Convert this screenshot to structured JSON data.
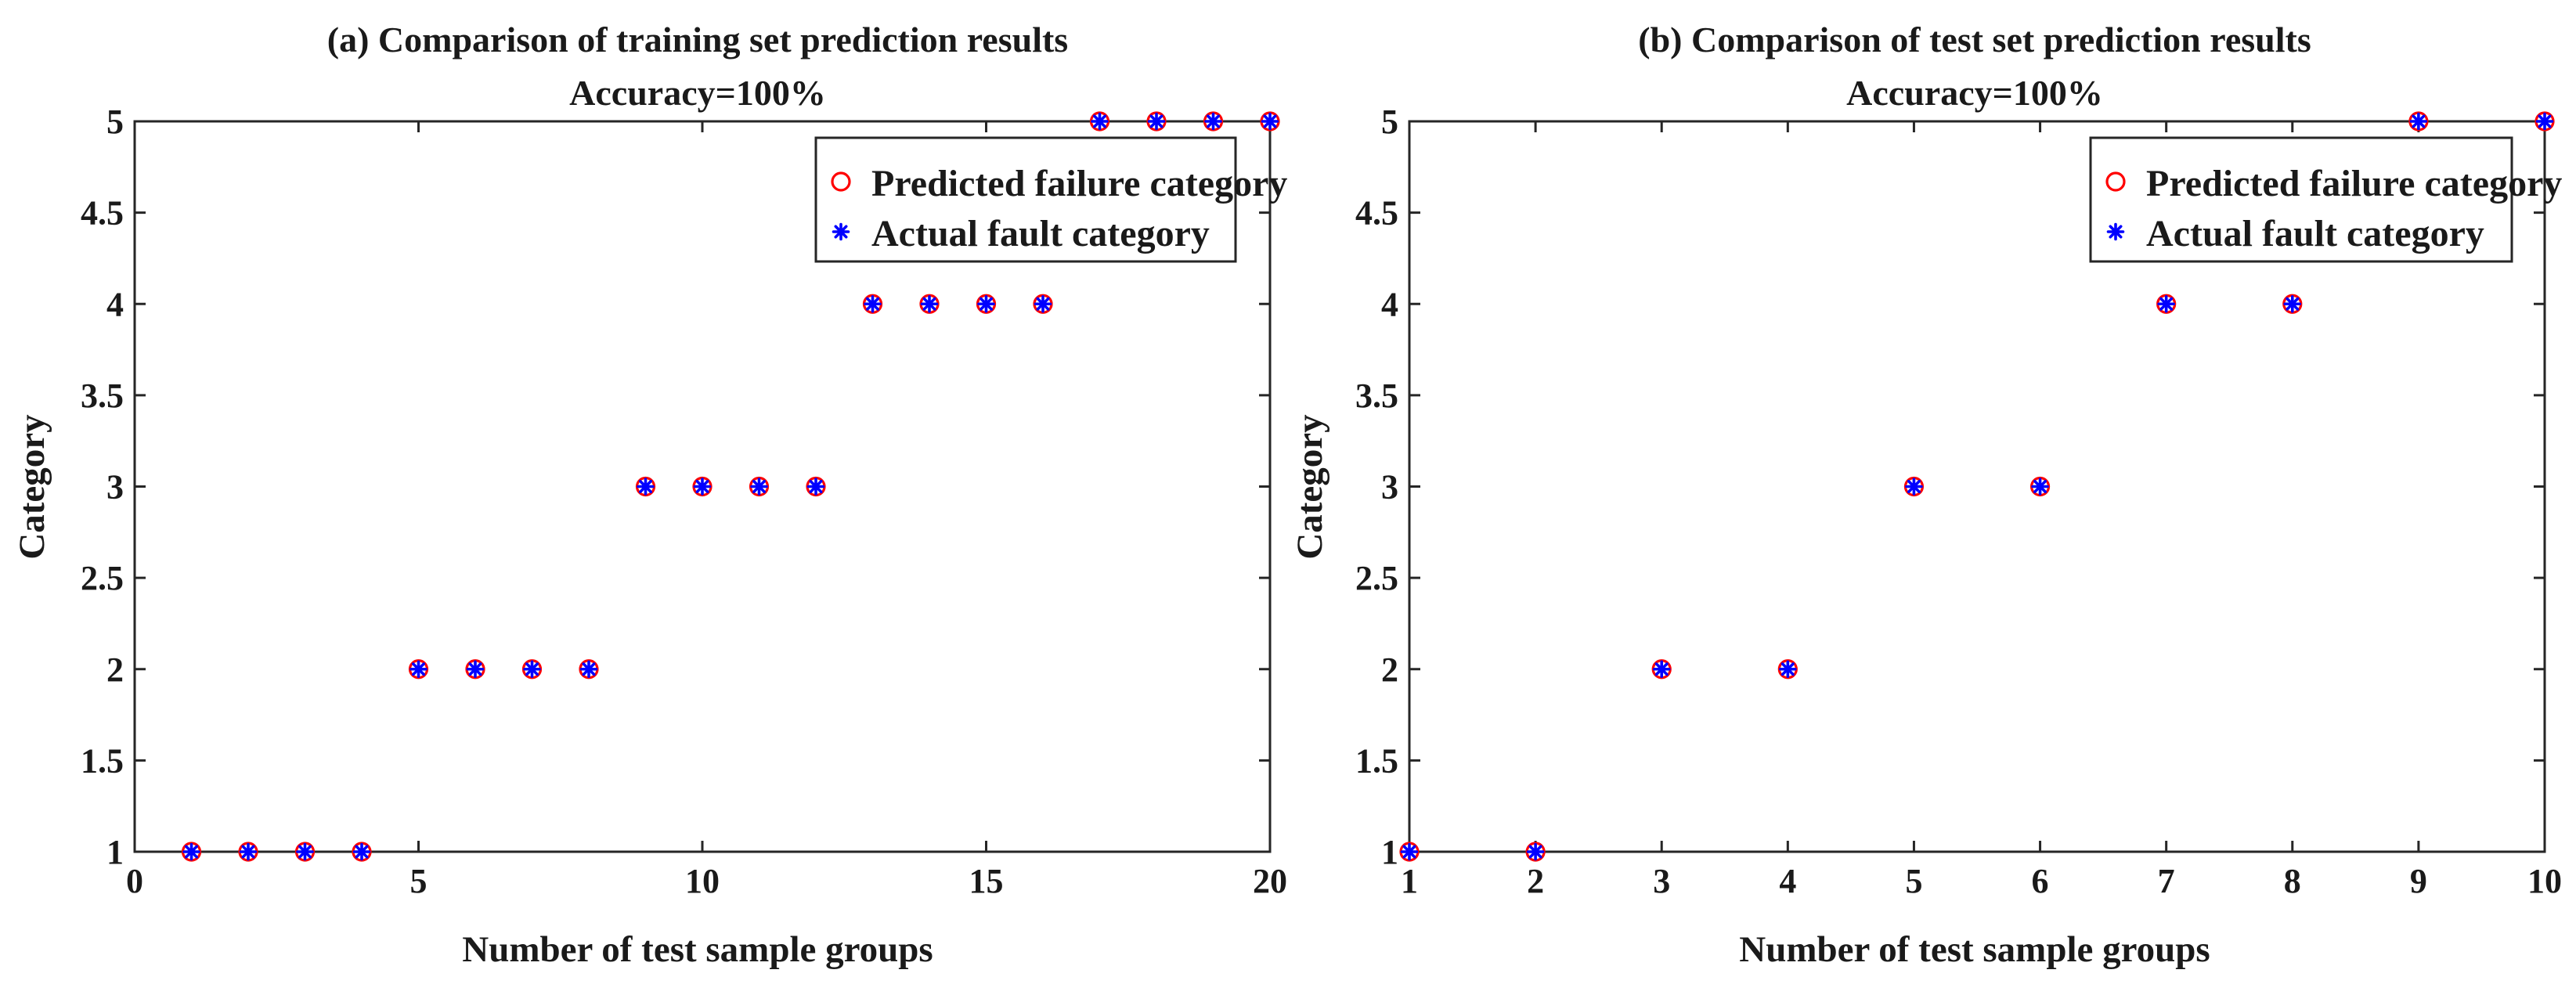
{
  "chart_data": [
    {
      "type": "scatter",
      "title": "(a) Comparison of training set prediction results",
      "subtitle": "Accuracy=100%",
      "xlabel": "Number of test sample groups",
      "ylabel": "Category",
      "xlim": [
        0,
        20
      ],
      "ylim": [
        1,
        5
      ],
      "xticks": [
        0,
        5,
        10,
        15,
        20
      ],
      "yticks": [
        1,
        1.5,
        2,
        2.5,
        3,
        3.5,
        4,
        4.5,
        5
      ],
      "legend_position": "top-right",
      "series": [
        {
          "name": "Predicted failure category",
          "marker": "circle",
          "color": "#ff0000",
          "x": [
            1,
            2,
            3,
            4,
            5,
            6,
            7,
            8,
            9,
            10,
            11,
            12,
            13,
            14,
            15,
            16,
            17,
            18,
            19,
            20
          ],
          "y": [
            1,
            1,
            1,
            1,
            2,
            2,
            2,
            2,
            3,
            3,
            3,
            3,
            4,
            4,
            4,
            4,
            5,
            5,
            5,
            5
          ]
        },
        {
          "name": "Actual fault category",
          "marker": "asterisk",
          "color": "#0000ff",
          "x": [
            1,
            2,
            3,
            4,
            5,
            6,
            7,
            8,
            9,
            10,
            11,
            12,
            13,
            14,
            15,
            16,
            17,
            18,
            19,
            20
          ],
          "y": [
            1,
            1,
            1,
            1,
            2,
            2,
            2,
            2,
            3,
            3,
            3,
            3,
            4,
            4,
            4,
            4,
            5,
            5,
            5,
            5
          ]
        }
      ]
    },
    {
      "type": "scatter",
      "title": "(b) Comparison of test set prediction results",
      "subtitle": "Accuracy=100%",
      "xlabel": "Number of test sample groups",
      "ylabel": "Category",
      "xlim": [
        1,
        10
      ],
      "ylim": [
        1,
        5
      ],
      "xticks": [
        1,
        2,
        3,
        4,
        5,
        6,
        7,
        8,
        9,
        10
      ],
      "yticks": [
        1,
        1.5,
        2,
        2.5,
        3,
        3.5,
        4,
        4.5,
        5
      ],
      "legend_position": "top-right",
      "series": [
        {
          "name": "Predicted failure category",
          "marker": "circle",
          "color": "#ff0000",
          "x": [
            1,
            2,
            3,
            4,
            5,
            6,
            7,
            8,
            9,
            10
          ],
          "y": [
            1,
            1,
            2,
            2,
            3,
            3,
            4,
            4,
            5,
            5
          ]
        },
        {
          "name": "Actual fault category",
          "marker": "asterisk",
          "color": "#0000ff",
          "x": [
            1,
            2,
            3,
            4,
            5,
            6,
            7,
            8,
            9,
            10
          ],
          "y": [
            1,
            1,
            2,
            2,
            3,
            3,
            4,
            4,
            5,
            5
          ]
        }
      ]
    }
  ]
}
